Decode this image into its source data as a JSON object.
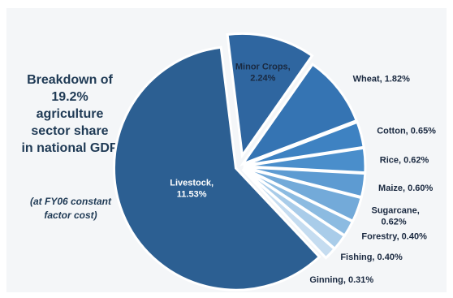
{
  "chart_data": {
    "type": "pie",
    "title_lines": [
      "Breakdown of",
      "19.2%",
      "agriculture",
      "sector share",
      "in national GDP"
    ],
    "subtitle_lines": [
      "(at FY06 constant",
      "factor cost)"
    ],
    "slices": [
      {
        "name": "Minor Crops",
        "value": 2.24,
        "value_label": "2.24%",
        "color": "#2f66a0",
        "text_color": "#1a2940"
      },
      {
        "name": "Wheat",
        "value": 1.82,
        "value_label": "1.82%",
        "color": "#3574b3",
        "text_color": "#1a2940"
      },
      {
        "name": "Cotton",
        "value": 0.65,
        "value_label": "0.65%",
        "color": "#3e82c2",
        "text_color": "#1a2940"
      },
      {
        "name": "Rice",
        "value": 0.62,
        "value_label": "0.62%",
        "color": "#4a8ecb",
        "text_color": "#1a2940"
      },
      {
        "name": "Maize",
        "value": 0.6,
        "value_label": "0.60%",
        "color": "#5d9bd2",
        "text_color": "#1a2940"
      },
      {
        "name": "Sugarcane",
        "value": 0.62,
        "value_label": "0.62%",
        "color": "#73aad9",
        "text_color": "#1a2940"
      },
      {
        "name": "Forestry",
        "value": 0.4,
        "value_label": "0.40%",
        "color": "#8cbbe1",
        "text_color": "#1a2940"
      },
      {
        "name": "Fishing",
        "value": 0.4,
        "value_label": "0.40%",
        "color": "#a9cce9",
        "text_color": "#1a2940"
      },
      {
        "name": "Ginning",
        "value": 0.31,
        "value_label": "0.31%",
        "color": "#c5dcf0",
        "text_color": "#1a2940"
      },
      {
        "name": "Livestock",
        "value": 11.53,
        "value_label": "11.53%",
        "color": "#2c5f92",
        "text_color": "#ffffff"
      }
    ]
  }
}
